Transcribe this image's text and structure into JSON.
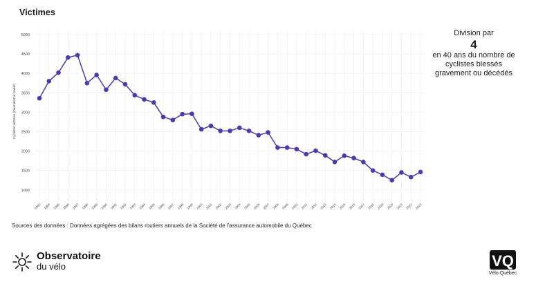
{
  "header": {
    "title": "Victimes"
  },
  "side_note": {
    "line1": "Division par",
    "big": "4",
    "line2": "en 40 ans du nombre de",
    "line3": "cyclistes blessés",
    "line4": "gravement ou décédés"
  },
  "sources": "Sources des données : Données agrégées des bilans routiers annuels de la Société de l'assurance automobile du Québec",
  "logo": {
    "line1": "Observatoire",
    "line2": "du vélo"
  },
  "vq_logo": {
    "caption": "Vélo Québec",
    "mark": "VQ"
  },
  "colors": {
    "accent": "#4b3aa8",
    "grid": "#ececec"
  },
  "chart_data": {
    "type": "line",
    "title": "Victimes",
    "ylabel": "Cyclistes victimes (traumatisme routier)",
    "xlabel": "",
    "ylim": [
      800,
      5000
    ],
    "yticks": [
      1000,
      1500,
      2000,
      2500,
      3000,
      3500,
      4000,
      4500,
      5000
    ],
    "grid": true,
    "x": [
      "1983",
      "1984",
      "1985",
      "1986",
      "1987",
      "1988",
      "1989",
      "1990",
      "1991",
      "1992",
      "1993",
      "1994",
      "1995",
      "1996",
      "1997",
      "1998",
      "1999",
      "2000",
      "2001",
      "2002",
      "2003",
      "2004",
      "2005",
      "2006",
      "2007",
      "2008",
      "2009",
      "2010",
      "2011",
      "2012",
      "2013",
      "2014",
      "2015",
      "2016",
      "2017",
      "2018",
      "2019",
      "2020",
      "2021",
      "2022",
      "2023"
    ],
    "series": [
      {
        "name": "",
        "values": [
          3360,
          3800,
          4020,
          4410,
          4470,
          3750,
          3960,
          3580,
          3880,
          3720,
          3440,
          3330,
          3250,
          2880,
          2800,
          2950,
          2960,
          2560,
          2650,
          2520,
          2520,
          2600,
          2520,
          2410,
          2480,
          2090,
          2090,
          2050,
          1920,
          2010,
          1890,
          1720,
          1880,
          1820,
          1720,
          1500,
          1390,
          1250,
          1450,
          1330,
          1460
        ]
      }
    ]
  }
}
